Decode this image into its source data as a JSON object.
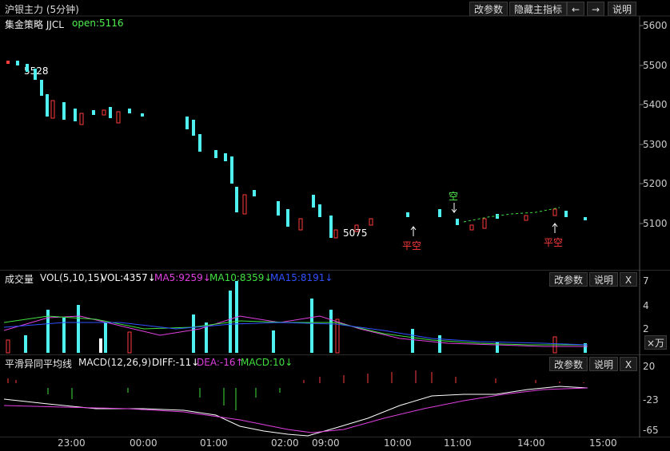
{
  "window": {
    "title": "沪银主力 (5分钟)",
    "buttons": {
      "params": "改参数",
      "hide_indicator": "隐藏主指标",
      "explain": "说明"
    }
  },
  "main_panel": {
    "strategy_label": "集金策略 JJCL",
    "open_label": "open:5116",
    "high_marker": "5528",
    "low_marker": "5075",
    "signal_short": "空",
    "signal_cover_1": "平空",
    "signal_cover_2": "平空",
    "price_axis": [
      "5600",
      "5500",
      "5400",
      "5300",
      "5200",
      "5100"
    ]
  },
  "volume_panel": {
    "title": "成交量",
    "vol_params": "VOL(5,10,15)",
    "vol": "VOL:4357↓",
    "ma5": "MA5:9259↓",
    "ma10": "MA10:8359↓",
    "ma15": "MA15:8191↓",
    "axis": [
      "7",
      "4",
      "2"
    ],
    "unit": "×万",
    "buttons": {
      "params": "改参数",
      "explain": "说明",
      "close": "X"
    }
  },
  "macd_panel": {
    "title": "平滑异同平均线",
    "params": "MACD(12,26,9)",
    "diff": "DIFF:-11↓",
    "dea": "DEA:-16↑",
    "macd": "MACD:10↓",
    "axis": [
      "20",
      "-23",
      "-65"
    ],
    "buttons": {
      "params": "改参数",
      "explain": "说明",
      "close": "X"
    }
  },
  "time_axis": [
    "23:00",
    "00:00",
    "01:00",
    "02:00",
    "09:00",
    "10:00",
    "11:00",
    "14:00",
    "15:00"
  ],
  "colors": {
    "up": "#ff3b3b",
    "down": "#4ff0f0",
    "ma5": "#e040e0",
    "ma10": "#40e040",
    "ma15": "#3050ff",
    "white": "#ffffff"
  }
}
